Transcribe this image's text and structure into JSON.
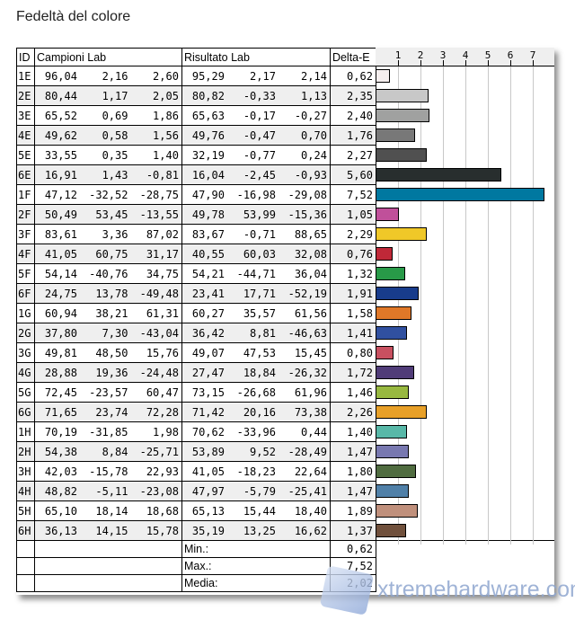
{
  "title": "Fedeltà del colore",
  "headers": {
    "id": "ID",
    "samples": "Campioni Lab",
    "result": "Risultato Lab",
    "delta": "Delta-E"
  },
  "summary": {
    "min_label": "Min.:",
    "min": "0,62",
    "max_label": "Max.:",
    "max": "7,52",
    "avg_label": "Media:",
    "avg": "2,02"
  },
  "watermark": "xtremehardware.com",
  "chart_data": {
    "type": "bar",
    "orientation": "horizontal",
    "xlim": [
      0,
      7.9
    ],
    "ticks": [
      "1",
      "2",
      "3",
      "4",
      "5",
      "6",
      "7"
    ],
    "grid": true,
    "categories": [
      "1E",
      "2E",
      "3E",
      "4E",
      "5E",
      "6E",
      "1F",
      "2F",
      "3F",
      "4F",
      "5F",
      "6F",
      "1G",
      "2G",
      "3G",
      "4G",
      "5G",
      "6G",
      "1H",
      "2H",
      "3H",
      "4H",
      "5H",
      "6H"
    ],
    "values": [
      0.62,
      2.35,
      2.4,
      1.76,
      2.27,
      5.6,
      7.52,
      1.05,
      2.29,
      0.76,
      1.32,
      1.91,
      1.58,
      1.41,
      0.8,
      1.72,
      1.46,
      2.26,
      1.4,
      1.47,
      1.8,
      1.47,
      1.89,
      1.37
    ],
    "colors": [
      "#f5eeee",
      "#c8c8c8",
      "#a0a1a0",
      "#787878",
      "#505050",
      "#282e2e",
      "#0078a0",
      "#c0509a",
      "#f0c828",
      "#c02838",
      "#289a48",
      "#183c8c",
      "#e07828",
      "#3050a0",
      "#c85060",
      "#503c78",
      "#98b840",
      "#e8a028",
      "#58b8a8",
      "#7878b0",
      "#506c40",
      "#5080a8",
      "#c0907c",
      "#70503c"
    ]
  },
  "rows": [
    {
      "id": "1E",
      "s": [
        "96,04",
        "2,16",
        "2,60"
      ],
      "r": [
        "95,29",
        "2,17",
        "2,14"
      ],
      "d": "0,62"
    },
    {
      "id": "2E",
      "s": [
        "80,44",
        "1,17",
        "2,05"
      ],
      "r": [
        "80,82",
        "-0,33",
        "1,13"
      ],
      "d": "2,35"
    },
    {
      "id": "3E",
      "s": [
        "65,52",
        "0,69",
        "1,86"
      ],
      "r": [
        "65,63",
        "-0,17",
        "-0,27"
      ],
      "d": "2,40"
    },
    {
      "id": "4E",
      "s": [
        "49,62",
        "0,58",
        "1,56"
      ],
      "r": [
        "49,76",
        "-0,47",
        "0,70"
      ],
      "d": "1,76"
    },
    {
      "id": "5E",
      "s": [
        "33,55",
        "0,35",
        "1,40"
      ],
      "r": [
        "32,19",
        "-0,77",
        "0,24"
      ],
      "d": "2,27"
    },
    {
      "id": "6E",
      "s": [
        "16,91",
        "1,43",
        "-0,81"
      ],
      "r": [
        "16,04",
        "-2,45",
        "-0,93"
      ],
      "d": "5,60"
    },
    {
      "id": "1F",
      "s": [
        "47,12",
        "-32,52",
        "-28,75"
      ],
      "r": [
        "47,90",
        "-16,98",
        "-29,08"
      ],
      "d": "7,52"
    },
    {
      "id": "2F",
      "s": [
        "50,49",
        "53,45",
        "-13,55"
      ],
      "r": [
        "49,78",
        "53,99",
        "-15,36"
      ],
      "d": "1,05"
    },
    {
      "id": "3F",
      "s": [
        "83,61",
        "3,36",
        "87,02"
      ],
      "r": [
        "83,67",
        "-0,71",
        "88,65"
      ],
      "d": "2,29"
    },
    {
      "id": "4F",
      "s": [
        "41,05",
        "60,75",
        "31,17"
      ],
      "r": [
        "40,55",
        "60,03",
        "32,08"
      ],
      "d": "0,76"
    },
    {
      "id": "5F",
      "s": [
        "54,14",
        "-40,76",
        "34,75"
      ],
      "r": [
        "54,21",
        "-44,71",
        "36,04"
      ],
      "d": "1,32"
    },
    {
      "id": "6F",
      "s": [
        "24,75",
        "13,78",
        "-49,48"
      ],
      "r": [
        "23,41",
        "17,71",
        "-52,19"
      ],
      "d": "1,91"
    },
    {
      "id": "1G",
      "s": [
        "60,94",
        "38,21",
        "61,31"
      ],
      "r": [
        "60,27",
        "35,57",
        "61,56"
      ],
      "d": "1,58"
    },
    {
      "id": "2G",
      "s": [
        "37,80",
        "7,30",
        "-43,04"
      ],
      "r": [
        "36,42",
        "8,81",
        "-46,63"
      ],
      "d": "1,41"
    },
    {
      "id": "3G",
      "s": [
        "49,81",
        "48,50",
        "15,76"
      ],
      "r": [
        "49,07",
        "47,53",
        "15,45"
      ],
      "d": "0,80"
    },
    {
      "id": "4G",
      "s": [
        "28,88",
        "19,36",
        "-24,48"
      ],
      "r": [
        "27,47",
        "18,84",
        "-26,32"
      ],
      "d": "1,72"
    },
    {
      "id": "5G",
      "s": [
        "72,45",
        "-23,57",
        "60,47"
      ],
      "r": [
        "73,15",
        "-26,68",
        "61,96"
      ],
      "d": "1,46"
    },
    {
      "id": "6G",
      "s": [
        "71,65",
        "23,74",
        "72,28"
      ],
      "r": [
        "71,42",
        "20,16",
        "73,38"
      ],
      "d": "2,26"
    },
    {
      "id": "1H",
      "s": [
        "70,19",
        "-31,85",
        "1,98"
      ],
      "r": [
        "70,62",
        "-33,96",
        "0,44"
      ],
      "d": "1,40"
    },
    {
      "id": "2H",
      "s": [
        "54,38",
        "8,84",
        "-25,71"
      ],
      "r": [
        "53,89",
        "9,52",
        "-28,49"
      ],
      "d": "1,47"
    },
    {
      "id": "3H",
      "s": [
        "42,03",
        "-15,78",
        "22,93"
      ],
      "r": [
        "41,05",
        "-18,23",
        "22,64"
      ],
      "d": "1,80"
    },
    {
      "id": "4H",
      "s": [
        "48,82",
        "-5,11",
        "-23,08"
      ],
      "r": [
        "47,97",
        "-5,79",
        "-25,41"
      ],
      "d": "1,47"
    },
    {
      "id": "5H",
      "s": [
        "65,10",
        "18,14",
        "18,68"
      ],
      "r": [
        "65,13",
        "15,44",
        "18,40"
      ],
      "d": "1,89"
    },
    {
      "id": "6H",
      "s": [
        "36,13",
        "14,15",
        "15,78"
      ],
      "r": [
        "35,19",
        "13,25",
        "16,62"
      ],
      "d": "1,37"
    }
  ]
}
